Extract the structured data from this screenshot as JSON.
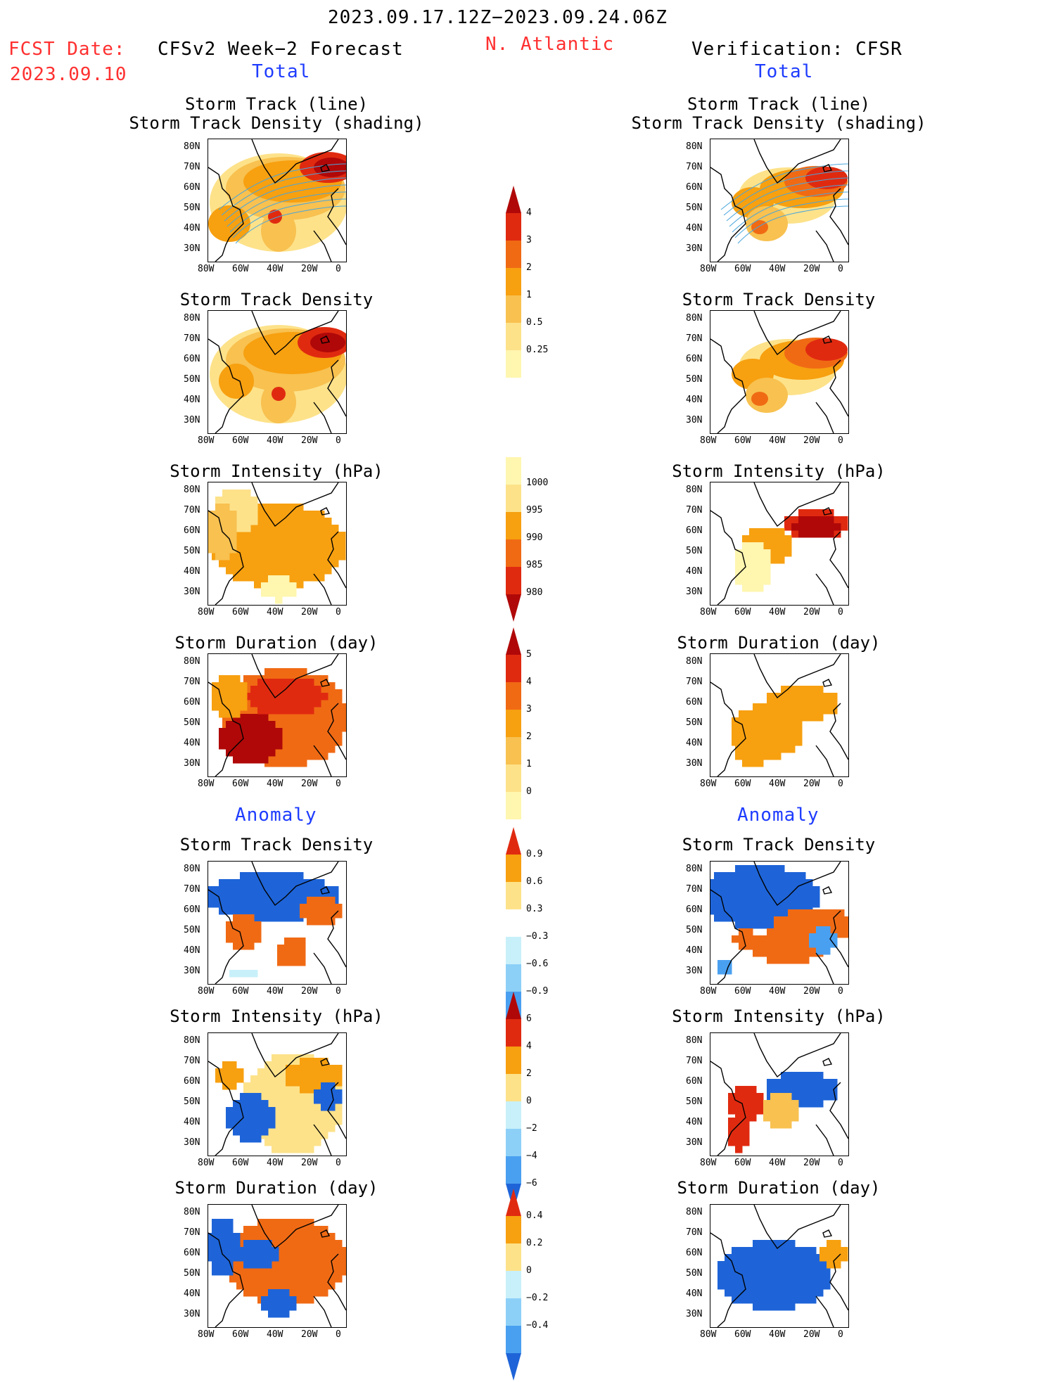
{
  "header": {
    "period": "2023.09.17.12Z−2023.09.24.06Z",
    "fcst_label": "FCST Date:",
    "fcst_date": "2023.09.10",
    "left_title": "CFSv2 Week−2 Forecast",
    "region": "N. Atlantic",
    "right_title": "Verification: CFSR",
    "left_sub": "Total",
    "right_sub": "Total"
  },
  "sections": {
    "anomaly_left": "Anomaly",
    "anomaly_right": "Anomaly"
  },
  "panels": {
    "track_line": "Storm Track (line)",
    "track_density_shading": "Storm Track Density (shading)",
    "track_density": "Storm Track Density",
    "intensity": "Storm Intensity (hPa)",
    "duration": "Storm Duration (day)"
  },
  "axes": {
    "lat": [
      "80N",
      "70N",
      "60N",
      "50N",
      "40N",
      "30N"
    ],
    "lon": [
      "80W",
      "60W",
      "40W",
      "20W",
      "0"
    ]
  },
  "colorbars": {
    "density": [
      "4",
      "3",
      "2",
      "1",
      "0.5",
      "0.25"
    ],
    "intensity": [
      "1000",
      "995",
      "990",
      "985",
      "980"
    ],
    "duration": [
      "5",
      "4",
      "3",
      "2",
      "1",
      "0"
    ],
    "density_anom": [
      "0.9",
      "0.6",
      "0.3",
      "−0.3",
      "−0.6",
      "−0.9"
    ],
    "intensity_anom": [
      "6",
      "4",
      "2",
      "0",
      "−2",
      "−4",
      "−6"
    ],
    "duration_anom": [
      "0.4",
      "0.2",
      "0",
      "−0.2",
      "−0.4"
    ]
  },
  "colors": {
    "title_red": "#ff3030",
    "title_blue": "#1e3cff",
    "warm": [
      "#fff6b0",
      "#fde28a",
      "#f8c150",
      "#f7a010",
      "#f06a14",
      "#e02a10",
      "#b00808"
    ],
    "cool": [
      "#c8f0fa",
      "#8cd0f8",
      "#4aa0f0",
      "#1e64d8"
    ]
  }
}
